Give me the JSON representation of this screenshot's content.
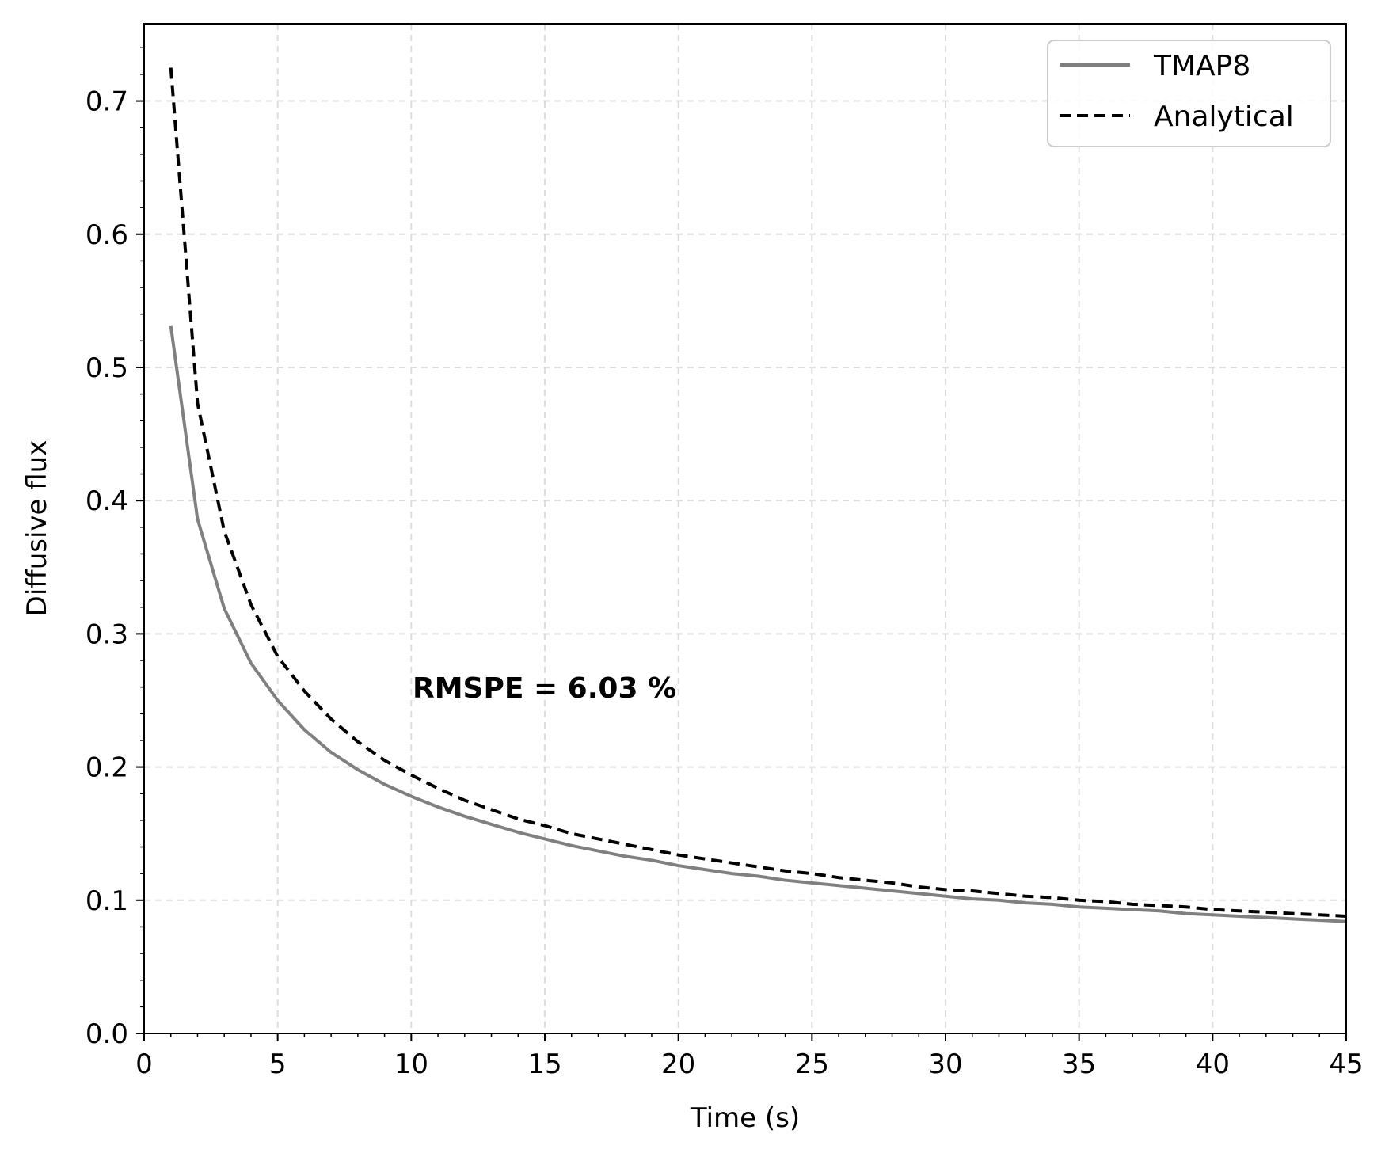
{
  "chart_data": {
    "type": "line",
    "xlabel": "Time (s)",
    "ylabel": "Diffusive flux",
    "xlim": [
      0,
      45
    ],
    "ylim": [
      0,
      0.758
    ],
    "x_ticks": [
      "0",
      "5",
      "10",
      "15",
      "20",
      "25",
      "30",
      "35",
      "40",
      "45"
    ],
    "y_ticks": [
      "0.0",
      "0.1",
      "0.2",
      "0.3",
      "0.4",
      "0.5",
      "0.6",
      "0.7"
    ],
    "grid": true,
    "legend_position": "top-right",
    "annotation": "RMSPE = 6.03 %",
    "series": [
      {
        "name": "TMAP8",
        "color": "#808080",
        "style": "solid",
        "x": [
          1,
          2,
          3,
          4,
          5,
          6,
          7,
          8,
          9,
          10,
          11,
          12,
          13,
          14,
          15,
          16,
          17,
          18,
          19,
          20,
          21,
          22,
          23,
          24,
          25,
          26,
          27,
          28,
          29,
          30,
          31,
          32,
          33,
          34,
          35,
          36,
          37,
          38,
          39,
          40,
          41,
          42,
          43,
          44,
          45
        ],
        "y": [
          0.531,
          0.386,
          0.319,
          0.278,
          0.25,
          0.228,
          0.211,
          0.198,
          0.187,
          0.178,
          0.17,
          0.163,
          0.157,
          0.151,
          0.146,
          0.141,
          0.137,
          0.133,
          0.13,
          0.126,
          0.123,
          0.12,
          0.118,
          0.115,
          0.113,
          0.111,
          0.109,
          0.107,
          0.105,
          0.103,
          0.101,
          0.1,
          0.098,
          0.097,
          0.095,
          0.094,
          0.093,
          0.092,
          0.09,
          0.089,
          0.088,
          0.087,
          0.086,
          0.085,
          0.084
        ]
      },
      {
        "name": "Analytical",
        "color": "#000000",
        "style": "dashed",
        "x": [
          1,
          2,
          3,
          4,
          5,
          6,
          7,
          8,
          9,
          10,
          11,
          12,
          13,
          14,
          15,
          16,
          17,
          18,
          19,
          20,
          21,
          22,
          23,
          24,
          25,
          26,
          27,
          28,
          29,
          30,
          31,
          32,
          33,
          34,
          35,
          36,
          37,
          38,
          39,
          40,
          41,
          42,
          43,
          44,
          45
        ],
        "y": [
          0.725,
          0.473,
          0.377,
          0.322,
          0.283,
          0.257,
          0.236,
          0.219,
          0.205,
          0.194,
          0.184,
          0.175,
          0.168,
          0.161,
          0.156,
          0.15,
          0.146,
          0.142,
          0.138,
          0.134,
          0.131,
          0.128,
          0.125,
          0.122,
          0.12,
          0.117,
          0.115,
          0.113,
          0.11,
          0.108,
          0.107,
          0.105,
          0.103,
          0.102,
          0.1,
          0.099,
          0.097,
          0.096,
          0.095,
          0.093,
          0.092,
          0.091,
          0.09,
          0.089,
          0.088
        ]
      }
    ]
  }
}
